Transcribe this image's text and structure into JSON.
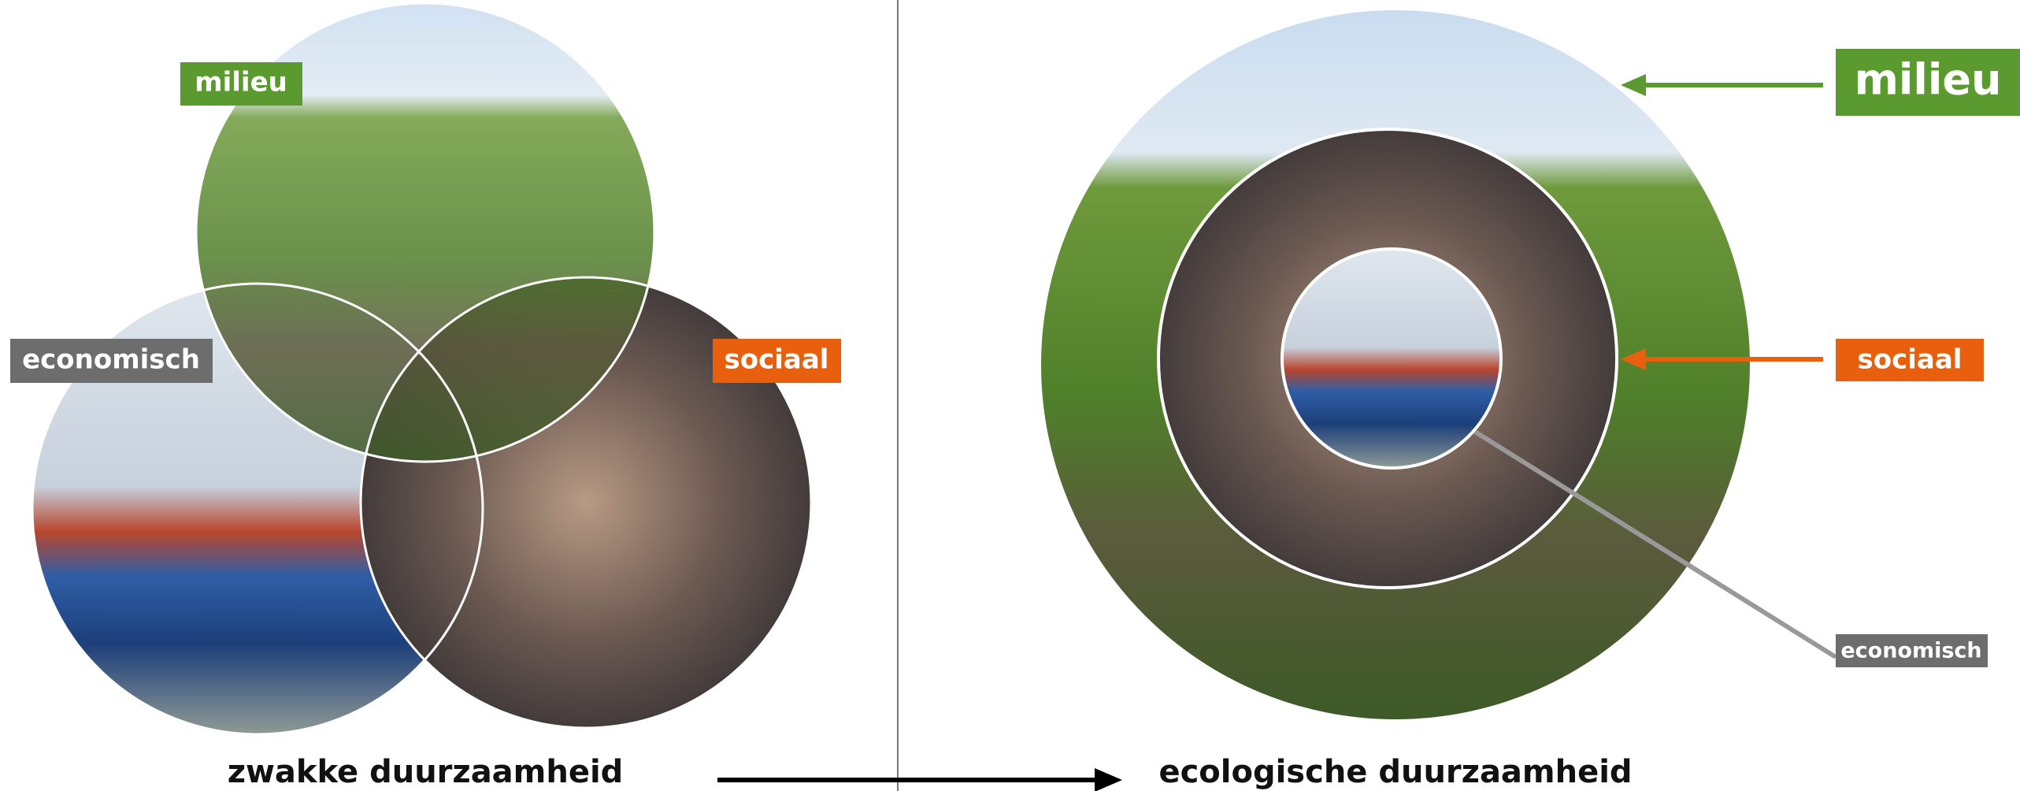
{
  "left": {
    "labels": {
      "milieu": "milieu",
      "economisch": "economisch",
      "sociaal": "sociaal"
    },
    "caption": "zwakke duurzaamheid"
  },
  "right": {
    "labels": {
      "milieu": "milieu",
      "sociaal": "sociaal",
      "economisch": "economisch"
    },
    "caption": "ecologische duurzaamheid"
  }
}
